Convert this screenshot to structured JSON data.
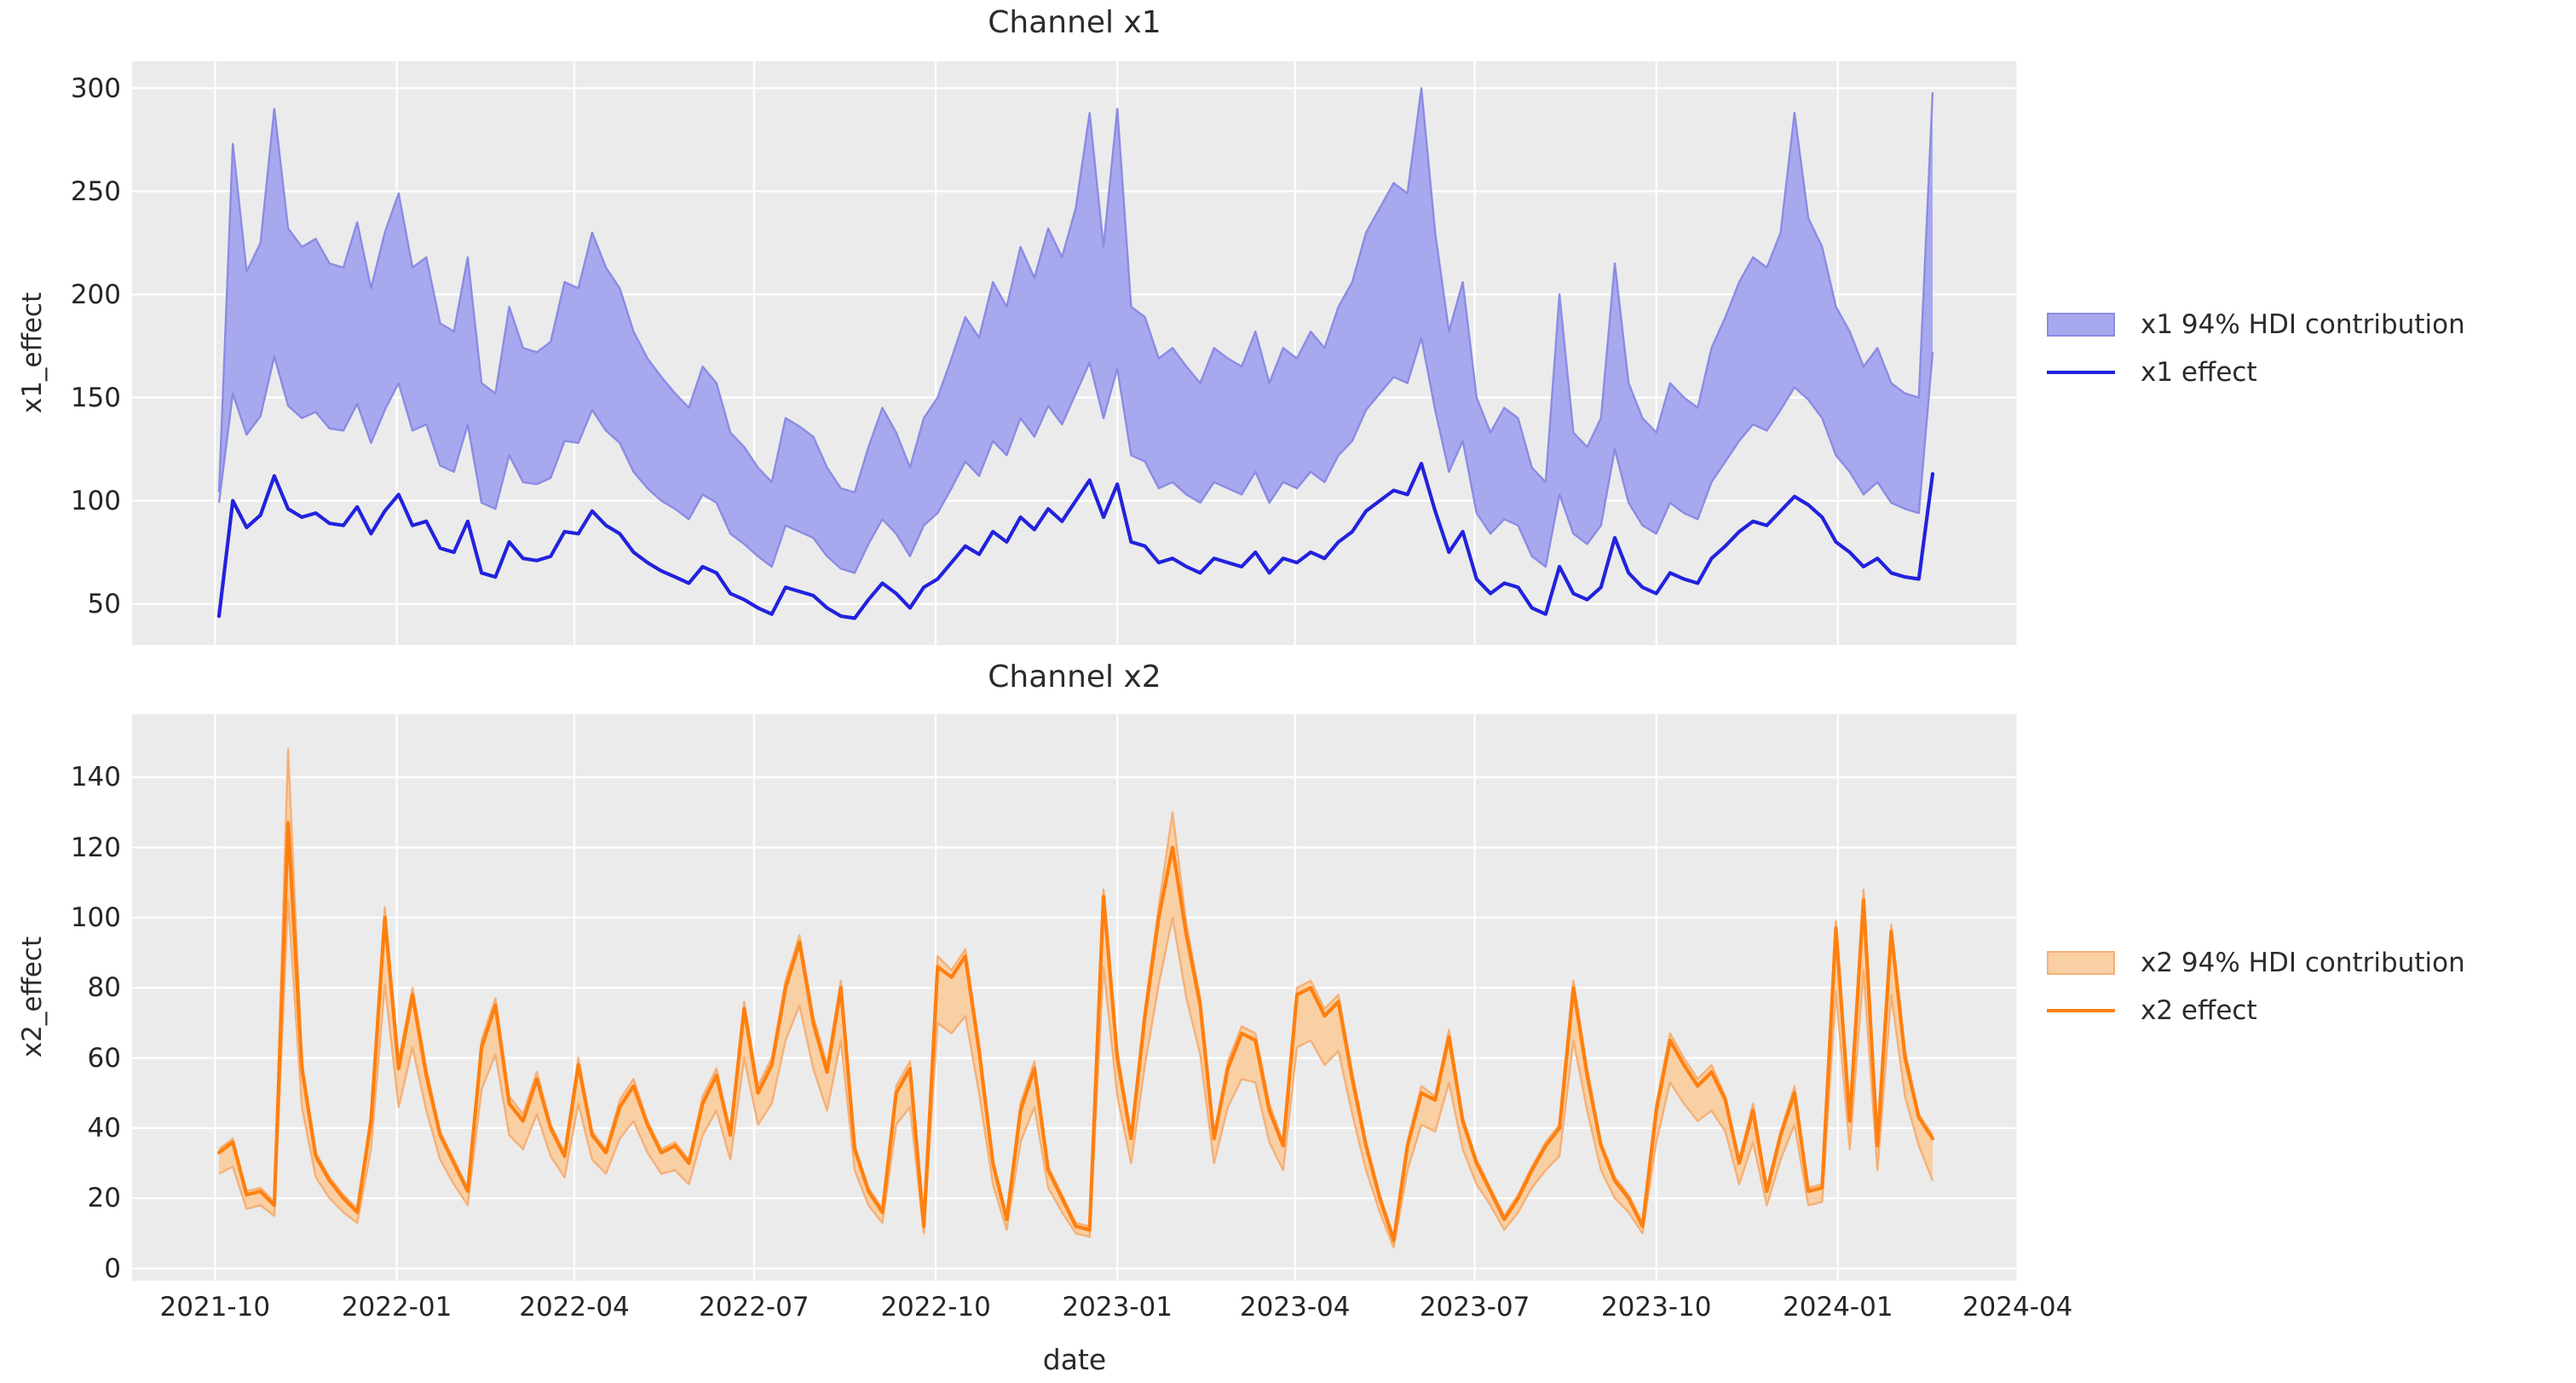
{
  "figure": {
    "background": "#ffffff",
    "panel_background": "#ebebeb",
    "grid_color": "#ffffff",
    "text_color": "#262626"
  },
  "chart_data": {
    "type": "line+band",
    "x": {
      "label": "date",
      "start_date": "2021-10-03",
      "freq": "weekly",
      "n_points": 125,
      "tick_labels": [
        "2021-10",
        "2022-01",
        "2022-04",
        "2022-07",
        "2022-10",
        "2023-01",
        "2023-04",
        "2023-07",
        "2023-10",
        "2024-01",
        "2024-04"
      ],
      "tick_week_positions": [
        -0.29,
        12.86,
        25.71,
        38.71,
        51.86,
        65.0,
        77.86,
        90.86,
        104.0,
        117.14,
        130.14
      ]
    },
    "panels": [
      {
        "title": "Channel x1",
        "ylabel": "x1_effect",
        "ylim": [
          30,
          313
        ],
        "yticks": [
          50,
          100,
          150,
          200,
          250,
          300
        ],
        "line_color": "#2222dd",
        "band_fill": "#a8a8ee",
        "band_edge": "#8b8be4",
        "legend": [
          {
            "label": "x1 94% HDI contribution",
            "kind": "band"
          },
          {
            "label": "x1 effect",
            "kind": "line"
          }
        ],
        "series": {
          "effect": [
            44,
            100,
            87,
            93,
            112,
            96,
            92,
            94,
            89,
            88,
            97,
            84,
            95,
            103,
            88,
            90,
            77,
            75,
            90,
            65,
            63,
            80,
            72,
            71,
            73,
            85,
            84,
            95,
            88,
            84,
            75,
            70,
            66,
            63,
            60,
            68,
            65,
            55,
            52,
            48,
            45,
            58,
            56,
            54,
            48,
            44,
            43,
            52,
            60,
            55,
            48,
            58,
            62,
            70,
            78,
            74,
            85,
            80,
            92,
            86,
            96,
            90,
            100,
            110,
            92,
            108,
            80,
            78,
            70,
            72,
            68,
            65,
            72,
            70,
            68,
            75,
            65,
            72,
            70,
            75,
            72,
            80,
            85,
            95,
            100,
            105,
            103,
            118,
            95,
            75,
            85,
            62,
            55,
            60,
            58,
            48,
            45,
            68,
            55,
            52,
            58,
            82,
            65,
            58,
            55,
            65,
            62,
            60,
            72,
            78,
            85,
            90,
            88,
            95,
            102,
            98,
            92,
            80,
            75,
            68,
            72,
            65,
            63,
            62,
            113
          ],
          "hdi_lower": [
            99,
            152,
            132,
            141,
            170,
            146,
            140,
            143,
            135,
            134,
            147,
            128,
            144,
            157,
            134,
            137,
            117,
            114,
            137,
            99,
            96,
            122,
            109,
            108,
            111,
            129,
            128,
            144,
            134,
            128,
            114,
            106,
            100,
            96,
            91,
            103,
            99,
            84,
            79,
            73,
            68,
            88,
            85,
            82,
            73,
            67,
            65,
            79,
            91,
            84,
            73,
            88,
            94,
            106,
            119,
            112,
            129,
            122,
            140,
            131,
            146,
            137,
            152,
            167,
            140,
            164,
            122,
            119,
            106,
            109,
            103,
            99,
            109,
            106,
            103,
            114,
            99,
            109,
            106,
            114,
            109,
            122,
            129,
            144,
            152,
            160,
            157,
            179,
            144,
            114,
            129,
            94,
            84,
            91,
            88,
            73,
            68,
            103,
            84,
            79,
            88,
            125,
            99,
            88,
            84,
            99,
            94,
            91,
            109,
            119,
            129,
            137,
            134,
            144,
            155,
            149,
            140,
            122,
            114,
            103,
            109,
            99,
            96,
            94,
            172
          ],
          "hdi_upper": [
            104,
            273,
            211,
            225,
            290,
            232,
            223,
            227,
            215,
            213,
            235,
            203,
            230,
            249,
            213,
            218,
            186,
            182,
            218,
            157,
            152,
            194,
            174,
            172,
            177,
            206,
            203,
            230,
            213,
            203,
            182,
            169,
            160,
            152,
            145,
            165,
            157,
            133,
            126,
            116,
            109,
            140,
            136,
            131,
            116,
            106,
            104,
            126,
            145,
            133,
            116,
            140,
            150,
            169,
            189,
            179,
            206,
            194,
            223,
            208,
            232,
            218,
            242,
            288,
            223,
            290,
            194,
            189,
            169,
            174,
            165,
            157,
            174,
            169,
            165,
            182,
            157,
            174,
            169,
            182,
            174,
            194,
            206,
            230,
            242,
            254,
            249,
            300,
            230,
            182,
            206,
            150,
            133,
            145,
            140,
            116,
            109,
            200,
            133,
            126,
            140,
            215,
            157,
            140,
            133,
            157,
            150,
            145,
            174,
            189,
            206,
            218,
            213,
            230,
            288,
            237,
            223,
            194,
            182,
            165,
            174,
            157,
            152,
            150,
            298
          ]
        }
      },
      {
        "title": "Channel x2",
        "ylabel": "x2_effect",
        "ylim": [
          -3.5,
          158
        ],
        "yticks": [
          0,
          20,
          40,
          60,
          80,
          100,
          120,
          140
        ],
        "line_color": "#ff7f0e",
        "band_fill": "#f9cfa4",
        "band_edge": "#f5b077",
        "legend": [
          {
            "label": "x2 94% HDI contribution",
            "kind": "band"
          },
          {
            "label": "x2 effect",
            "kind": "line"
          }
        ],
        "series": {
          "effect": [
            33,
            36,
            21,
            22,
            18,
            127,
            57,
            32,
            25,
            20,
            16,
            42,
            100,
            57,
            78,
            55,
            38,
            30,
            22,
            63,
            75,
            47,
            42,
            54,
            40,
            32,
            58,
            38,
            33,
            46,
            52,
            41,
            33,
            35,
            30,
            47,
            55,
            38,
            74,
            50,
            58,
            80,
            93,
            70,
            56,
            80,
            34,
            22,
            16,
            50,
            57,
            12,
            86,
            83,
            89,
            62,
            30,
            14,
            45,
            57,
            28,
            20,
            12,
            11,
            106,
            60,
            37,
            72,
            100,
            120,
            95,
            75,
            37,
            57,
            67,
            65,
            45,
            35,
            78,
            80,
            72,
            76,
            54,
            35,
            20,
            8,
            35,
            50,
            48,
            66,
            42,
            30,
            22,
            14,
            20,
            28,
            35,
            40,
            80,
            55,
            35,
            25,
            20,
            12,
            45,
            65,
            58,
            52,
            56,
            48,
            30,
            45,
            22,
            38,
            50,
            22,
            23,
            97,
            42,
            105,
            35,
            96,
            60,
            43,
            37
          ],
          "hdi_lower": [
            27,
            29,
            17,
            18,
            15,
            105,
            46,
            26,
            20,
            16,
            13,
            34,
            81,
            46,
            63,
            45,
            31,
            24,
            18,
            51,
            61,
            38,
            34,
            44,
            32,
            26,
            47,
            31,
            27,
            37,
            42,
            33,
            27,
            28,
            24,
            38,
            45,
            31,
            60,
            41,
            47,
            65,
            75,
            57,
            45,
            65,
            28,
            18,
            13,
            41,
            46,
            10,
            70,
            67,
            72,
            50,
            24,
            11,
            36,
            46,
            23,
            16,
            10,
            9,
            86,
            49,
            30,
            58,
            81,
            100,
            77,
            61,
            30,
            46,
            54,
            53,
            36,
            28,
            63,
            65,
            58,
            62,
            44,
            28,
            16,
            6,
            28,
            41,
            39,
            53,
            34,
            24,
            18,
            11,
            16,
            23,
            28,
            32,
            65,
            45,
            28,
            20,
            16,
            10,
            36,
            53,
            47,
            42,
            45,
            39,
            24,
            36,
            18,
            31,
            41,
            18,
            19,
            79,
            34,
            85,
            28,
            78,
            49,
            35,
            25
          ],
          "hdi_upper": [
            34,
            37,
            22,
            23,
            19,
            148,
            59,
            33,
            26,
            21,
            17,
            44,
            103,
            59,
            80,
            57,
            39,
            31,
            23,
            65,
            77,
            49,
            44,
            56,
            41,
            33,
            60,
            39,
            34,
            48,
            54,
            42,
            34,
            36,
            31,
            49,
            57,
            39,
            76,
            52,
            60,
            82,
            95,
            72,
            58,
            82,
            35,
            23,
            17,
            52,
            59,
            13,
            89,
            85,
            91,
            64,
            31,
            15,
            47,
            59,
            29,
            21,
            13,
            12,
            108,
            62,
            38,
            74,
            103,
            130,
            98,
            77,
            38,
            59,
            69,
            67,
            47,
            36,
            80,
            82,
            74,
            78,
            56,
            36,
            21,
            9,
            36,
            52,
            49,
            68,
            43,
            31,
            23,
            15,
            21,
            29,
            36,
            41,
            82,
            57,
            36,
            26,
            21,
            13,
            47,
            67,
            60,
            54,
            58,
            49,
            31,
            47,
            23,
            39,
            52,
            23,
            24,
            99,
            43,
            108,
            36,
            98,
            62,
            44,
            38
          ]
        }
      }
    ]
  }
}
